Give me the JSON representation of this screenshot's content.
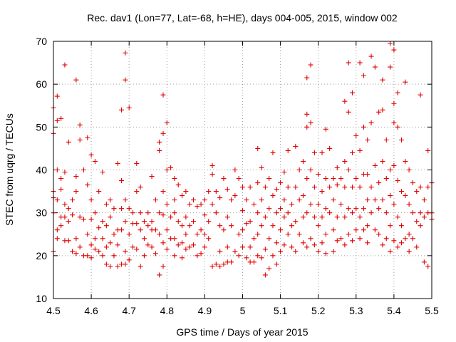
{
  "chart_data": {
    "type": "scatter",
    "title": "Rec. dav1 (Lon=77, Lat=-68, h=HE), days 004-005, 2015, window 002",
    "xlabel": "GPS time / Days of year 2015",
    "ylabel": "STEC from uqrg / TECUs",
    "xlim": [
      4.5,
      5.5
    ],
    "ylim": [
      10,
      70
    ],
    "x_ticks": [
      4.5,
      4.6,
      4.7,
      4.8,
      4.9,
      5.0,
      5.1,
      5.2,
      5.3,
      5.4,
      5.5
    ],
    "x_tick_labels": [
      "4.5",
      "4.6",
      "4.7",
      "4.8",
      "4.9",
      "5",
      "5.1",
      "5.2",
      "5.3",
      "5.4",
      "5.5"
    ],
    "y_ticks": [
      10,
      20,
      30,
      40,
      50,
      60,
      70
    ],
    "y_tick_labels": [
      "10",
      "20",
      "30",
      "40",
      "50",
      "60",
      "70"
    ],
    "grid": true,
    "legend": "none",
    "marker": "plus",
    "color": "#e00000",
    "points": [
      [
        4.5,
        54.5
      ],
      [
        4.5,
        48.5
      ],
      [
        4.5,
        35
      ],
      [
        4.5,
        33.5
      ],
      [
        4.5,
        30
      ],
      [
        4.5,
        21
      ],
      [
        4.51,
        57.2
      ],
      [
        4.51,
        51.5
      ],
      [
        4.51,
        40
      ],
      [
        4.51,
        33
      ],
      [
        4.51,
        26
      ],
      [
        4.51,
        24
      ],
      [
        4.52,
        52
      ],
      [
        4.52,
        38
      ],
      [
        4.52,
        35.5
      ],
      [
        4.52,
        29
      ],
      [
        4.52,
        27
      ],
      [
        4.53,
        64.5
      ],
      [
        4.53,
        39.5
      ],
      [
        4.53,
        32
      ],
      [
        4.53,
        29
      ],
      [
        4.53,
        23.5
      ],
      [
        4.54,
        46.5
      ],
      [
        4.54,
        31
      ],
      [
        4.54,
        28
      ],
      [
        4.54,
        23.5
      ],
      [
        4.55,
        33
      ],
      [
        4.55,
        29.5
      ],
      [
        4.55,
        21
      ],
      [
        4.56,
        61
      ],
      [
        4.56,
        38.5
      ],
      [
        4.56,
        35
      ],
      [
        4.56,
        24
      ],
      [
        4.56,
        20.5
      ],
      [
        4.57,
        50.5
      ],
      [
        4.57,
        47
      ],
      [
        4.57,
        29
      ],
      [
        4.57,
        22
      ],
      [
        4.58,
        20
      ],
      [
        4.58,
        28.5
      ],
      [
        4.58,
        40
      ],
      [
        4.59,
        47.5
      ],
      [
        4.59,
        36.5
      ],
      [
        4.59,
        25
      ],
      [
        4.59,
        20
      ],
      [
        4.6,
        43.5
      ],
      [
        4.6,
        33
      ],
      [
        4.6,
        28.5
      ],
      [
        4.6,
        22.5
      ],
      [
        4.6,
        19.5
      ],
      [
        4.61,
        42
      ],
      [
        4.61,
        30
      ],
      [
        4.61,
        24
      ],
      [
        4.61,
        21.5
      ],
      [
        4.62,
        35
      ],
      [
        4.62,
        26.5
      ],
      [
        4.62,
        21
      ],
      [
        4.63,
        39.5
      ],
      [
        4.63,
        28
      ],
      [
        4.63,
        24
      ],
      [
        4.63,
        20
      ],
      [
        4.64,
        32
      ],
      [
        4.64,
        27
      ],
      [
        4.64,
        22
      ],
      [
        4.64,
        18
      ],
      [
        4.65,
        33
      ],
      [
        4.65,
        29
      ],
      [
        4.65,
        23
      ],
      [
        4.65,
        17.5
      ],
      [
        4.66,
        31
      ],
      [
        4.66,
        25
      ],
      [
        4.66,
        20
      ],
      [
        4.67,
        41.5
      ],
      [
        4.67,
        26
      ],
      [
        4.67,
        22.5
      ],
      [
        4.67,
        17.5
      ],
      [
        4.68,
        54
      ],
      [
        4.68,
        37.5
      ],
      [
        4.68,
        31
      ],
      [
        4.68,
        26
      ],
      [
        4.68,
        18
      ],
      [
        4.69,
        67.3
      ],
      [
        4.69,
        61
      ],
      [
        4.69,
        33
      ],
      [
        4.69,
        28
      ],
      [
        4.69,
        21
      ],
      [
        4.69,
        18
      ],
      [
        4.7,
        54.5
      ],
      [
        4.7,
        31
      ],
      [
        4.7,
        25
      ],
      [
        4.7,
        19
      ],
      [
        4.71,
        30
      ],
      [
        4.71,
        27.5
      ],
      [
        4.71,
        22
      ],
      [
        4.72,
        41.5
      ],
      [
        4.72,
        35
      ],
      [
        4.72,
        27.5
      ],
      [
        4.72,
        21.5
      ],
      [
        4.73,
        36
      ],
      [
        4.73,
        30
      ],
      [
        4.73,
        26
      ],
      [
        4.73,
        17.5
      ],
      [
        4.74,
        28
      ],
      [
        4.74,
        24
      ],
      [
        4.74,
        20
      ],
      [
        4.75,
        30
      ],
      [
        4.75,
        27
      ],
      [
        4.75,
        22.5
      ],
      [
        4.76,
        38.5
      ],
      [
        4.76,
        28
      ],
      [
        4.76,
        26
      ],
      [
        4.76,
        22
      ],
      [
        4.77,
        33
      ],
      [
        4.77,
        26
      ],
      [
        4.77,
        20.5
      ],
      [
        4.78,
        46.5
      ],
      [
        4.78,
        44.5
      ],
      [
        4.78,
        30
      ],
      [
        4.78,
        25
      ],
      [
        4.78,
        15.5
      ],
      [
        4.79,
        57.5
      ],
      [
        4.79,
        48.5
      ],
      [
        4.79,
        35
      ],
      [
        4.79,
        29.5
      ],
      [
        4.79,
        23
      ],
      [
        4.79,
        17.5
      ],
      [
        4.8,
        51
      ],
      [
        4.8,
        40
      ],
      [
        4.8,
        32
      ],
      [
        4.8,
        26
      ],
      [
        4.8,
        21.5
      ],
      [
        4.81,
        40.5
      ],
      [
        4.81,
        29
      ],
      [
        4.81,
        24
      ],
      [
        4.82,
        38
      ],
      [
        4.82,
        33
      ],
      [
        4.82,
        30
      ],
      [
        4.82,
        24
      ],
      [
        4.82,
        20
      ],
      [
        4.83,
        36.5
      ],
      [
        4.83,
        28
      ],
      [
        4.83,
        22.5
      ],
      [
        4.84,
        34
      ],
      [
        4.84,
        27
      ],
      [
        4.84,
        23
      ],
      [
        4.84,
        19.5
      ],
      [
        4.85,
        35
      ],
      [
        4.85,
        29
      ],
      [
        4.85,
        25
      ],
      [
        4.85,
        21.5
      ],
      [
        4.86,
        32
      ],
      [
        4.86,
        27
      ],
      [
        4.86,
        22
      ],
      [
        4.87,
        33
      ],
      [
        4.87,
        28
      ],
      [
        4.87,
        22.5
      ],
      [
        4.88,
        31.5
      ],
      [
        4.88,
        25
      ],
      [
        4.88,
        20
      ],
      [
        4.89,
        32
      ],
      [
        4.89,
        26
      ],
      [
        4.89,
        20.5
      ],
      [
        4.9,
        33
      ],
      [
        4.9,
        29.5
      ],
      [
        4.9,
        25
      ],
      [
        4.9,
        22
      ],
      [
        4.91,
        35
      ],
      [
        4.91,
        28
      ],
      [
        4.91,
        24
      ],
      [
        4.92,
        41
      ],
      [
        4.92,
        39
      ],
      [
        4.92,
        32
      ],
      [
        4.92,
        17.5
      ],
      [
        4.93,
        35
      ],
      [
        4.93,
        30
      ],
      [
        4.93,
        18
      ],
      [
        4.94,
        33.5
      ],
      [
        4.94,
        27
      ],
      [
        4.94,
        21
      ],
      [
        4.94,
        17.5
      ],
      [
        4.95,
        38
      ],
      [
        4.95,
        26
      ],
      [
        4.95,
        18
      ],
      [
        4.96,
        35.5
      ],
      [
        4.96,
        29
      ],
      [
        4.96,
        22
      ],
      [
        4.96,
        18.5
      ],
      [
        4.97,
        33
      ],
      [
        4.97,
        27
      ],
      [
        4.97,
        18.5
      ],
      [
        4.98,
        40
      ],
      [
        4.98,
        34
      ],
      [
        4.98,
        21
      ],
      [
        4.99,
        38
      ],
      [
        4.99,
        25
      ],
      [
        4.99,
        20
      ],
      [
        5.0,
        36
      ],
      [
        5.0,
        30.5
      ],
      [
        5.0,
        26
      ],
      [
        5.0,
        22
      ],
      [
        5.01,
        33
      ],
      [
        5.01,
        27.5
      ],
      [
        5.01,
        19.5
      ],
      [
        5.02,
        36
      ],
      [
        5.02,
        28
      ],
      [
        5.02,
        22
      ],
      [
        5.02,
        18.5
      ],
      [
        5.03,
        32
      ],
      [
        5.03,
        24
      ],
      [
        5.03,
        18.5
      ],
      [
        5.04,
        45
      ],
      [
        5.04,
        37
      ],
      [
        5.04,
        30
      ],
      [
        5.04,
        25
      ],
      [
        5.04,
        20
      ],
      [
        5.05,
        40.5
      ],
      [
        5.05,
        33
      ],
      [
        5.05,
        27
      ],
      [
        5.05,
        19.5
      ],
      [
        5.06,
        36
      ],
      [
        5.06,
        29
      ],
      [
        5.06,
        21.5
      ],
      [
        5.06,
        15.5
      ],
      [
        5.07,
        38
      ],
      [
        5.07,
        31
      ],
      [
        5.07,
        24
      ],
      [
        5.07,
        17
      ],
      [
        5.08,
        44
      ],
      [
        5.08,
        34
      ],
      [
        5.08,
        27
      ],
      [
        5.08,
        20
      ],
      [
        5.09,
        35.5
      ],
      [
        5.09,
        30
      ],
      [
        5.09,
        23
      ],
      [
        5.09,
        18
      ],
      [
        5.1,
        37
      ],
      [
        5.1,
        31
      ],
      [
        5.1,
        26
      ],
      [
        5.1,
        21
      ],
      [
        5.11,
        39.5
      ],
      [
        5.11,
        33
      ],
      [
        5.11,
        29
      ],
      [
        5.11,
        22.5
      ],
      [
        5.12,
        44.5
      ],
      [
        5.12,
        36
      ],
      [
        5.12,
        30
      ],
      [
        5.12,
        25
      ],
      [
        5.13,
        32
      ],
      [
        5.13,
        27
      ],
      [
        5.13,
        22
      ],
      [
        5.14,
        45.5
      ],
      [
        5.14,
        36
      ],
      [
        5.14,
        28
      ],
      [
        5.14,
        21
      ],
      [
        5.15,
        40
      ],
      [
        5.15,
        33
      ],
      [
        5.15,
        25
      ],
      [
        5.16,
        42
      ],
      [
        5.16,
        34
      ],
      [
        5.16,
        29
      ],
      [
        5.16,
        23
      ],
      [
        5.17,
        61.5
      ],
      [
        5.17,
        53
      ],
      [
        5.17,
        50
      ],
      [
        5.17,
        38
      ],
      [
        5.17,
        30
      ],
      [
        5.17,
        22
      ],
      [
        5.18,
        64.5
      ],
      [
        5.18,
        51
      ],
      [
        5.18,
        40
      ],
      [
        5.18,
        32
      ],
      [
        5.18,
        24
      ],
      [
        5.19,
        44
      ],
      [
        5.19,
        36
      ],
      [
        5.19,
        29
      ],
      [
        5.19,
        22.5
      ],
      [
        5.2,
        39
      ],
      [
        5.2,
        32
      ],
      [
        5.2,
        27
      ],
      [
        5.2,
        21
      ],
      [
        5.21,
        44
      ],
      [
        5.21,
        35
      ],
      [
        5.21,
        29
      ],
      [
        5.21,
        23
      ],
      [
        5.22,
        49.5
      ],
      [
        5.22,
        38
      ],
      [
        5.22,
        31
      ],
      [
        5.22,
        25
      ],
      [
        5.22,
        20.5
      ],
      [
        5.23,
        45
      ],
      [
        5.23,
        36
      ],
      [
        5.23,
        30
      ],
      [
        5.24,
        38
      ],
      [
        5.24,
        33
      ],
      [
        5.24,
        26
      ],
      [
        5.24,
        21
      ],
      [
        5.25,
        40.5
      ],
      [
        5.25,
        36.5
      ],
      [
        5.25,
        29
      ],
      [
        5.25,
        23.5
      ],
      [
        5.26,
        38
      ],
      [
        5.26,
        32
      ],
      [
        5.26,
        24
      ],
      [
        5.27,
        56
      ],
      [
        5.27,
        42
      ],
      [
        5.27,
        36
      ],
      [
        5.27,
        29
      ],
      [
        5.27,
        22.5
      ],
      [
        5.28,
        65
      ],
      [
        5.28,
        53.5
      ],
      [
        5.28,
        40
      ],
      [
        5.28,
        31
      ],
      [
        5.28,
        25
      ],
      [
        5.29,
        58
      ],
      [
        5.29,
        44
      ],
      [
        5.29,
        36
      ],
      [
        5.29,
        30
      ],
      [
        5.29,
        23.5
      ],
      [
        5.3,
        48
      ],
      [
        5.3,
        38
      ],
      [
        5.3,
        31
      ],
      [
        5.3,
        26
      ],
      [
        5.31,
        65
      ],
      [
        5.31,
        44.5
      ],
      [
        5.31,
        36
      ],
      [
        5.31,
        29
      ],
      [
        5.31,
        24
      ],
      [
        5.32,
        62
      ],
      [
        5.32,
        50
      ],
      [
        5.32,
        39
      ],
      [
        5.32,
        31
      ],
      [
        5.32,
        26
      ],
      [
        5.33,
        47
      ],
      [
        5.33,
        39
      ],
      [
        5.33,
        33
      ],
      [
        5.33,
        27
      ],
      [
        5.33,
        23
      ],
      [
        5.34,
        66.5
      ],
      [
        5.34,
        51
      ],
      [
        5.34,
        36
      ],
      [
        5.34,
        30
      ],
      [
        5.35,
        64
      ],
      [
        5.35,
        41
      ],
      [
        5.35,
        33
      ],
      [
        5.35,
        26
      ],
      [
        5.36,
        53.5
      ],
      [
        5.36,
        37
      ],
      [
        5.36,
        31
      ],
      [
        5.36,
        25
      ],
      [
        5.37,
        61
      ],
      [
        5.37,
        54
      ],
      [
        5.37,
        42
      ],
      [
        5.37,
        33
      ],
      [
        5.37,
        22.5
      ],
      [
        5.38,
        47
      ],
      [
        5.38,
        38
      ],
      [
        5.38,
        30
      ],
      [
        5.38,
        24
      ],
      [
        5.39,
        69.5
      ],
      [
        5.39,
        64
      ],
      [
        5.39,
        40
      ],
      [
        5.39,
        34
      ],
      [
        5.39,
        27
      ],
      [
        5.39,
        21
      ],
      [
        5.4,
        68
      ],
      [
        5.4,
        55.5
      ],
      [
        5.4,
        51
      ],
      [
        5.4,
        41
      ],
      [
        5.4,
        32
      ],
      [
        5.4,
        23.5
      ],
      [
        5.41,
        58
      ],
      [
        5.41,
        50
      ],
      [
        5.41,
        37.5
      ],
      [
        5.41,
        29
      ],
      [
        5.41,
        22
      ],
      [
        5.42,
        47
      ],
      [
        5.42,
        35
      ],
      [
        5.42,
        27
      ],
      [
        5.42,
        23
      ],
      [
        5.43,
        60.5
      ],
      [
        5.43,
        42
      ],
      [
        5.43,
        34
      ],
      [
        5.43,
        24
      ],
      [
        5.44,
        40
      ],
      [
        5.44,
        32
      ],
      [
        5.44,
        25
      ],
      [
        5.44,
        21
      ],
      [
        5.45,
        37
      ],
      [
        5.45,
        30
      ],
      [
        5.45,
        24
      ],
      [
        5.46,
        35
      ],
      [
        5.46,
        28
      ],
      [
        5.46,
        22
      ],
      [
        5.47,
        57.5
      ],
      [
        5.47,
        36
      ],
      [
        5.47,
        30
      ],
      [
        5.47,
        27
      ],
      [
        5.48,
        33
      ],
      [
        5.48,
        29
      ],
      [
        5.48,
        18.5
      ],
      [
        5.49,
        44.5
      ],
      [
        5.49,
        36
      ],
      [
        5.49,
        30
      ],
      [
        5.49,
        17.5
      ],
      [
        5.5,
        37
      ],
      [
        5.5,
        30
      ],
      [
        5.5,
        28.5
      ]
    ]
  }
}
